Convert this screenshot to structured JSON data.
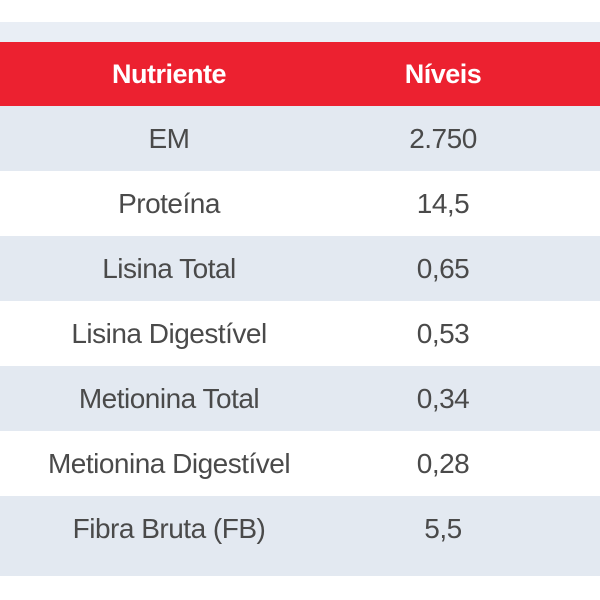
{
  "table": {
    "headers": {
      "nutrient": "Nutriente",
      "levels": "Níveis"
    },
    "rows": [
      {
        "nutrient": "EM",
        "level": "2.750"
      },
      {
        "nutrient": "Proteína",
        "level": "14,5"
      },
      {
        "nutrient": "Lisina Total",
        "level": "0,65"
      },
      {
        "nutrient": "Lisina Digestível",
        "level": "0,53"
      },
      {
        "nutrient": "Metionina Total",
        "level": "0,34"
      },
      {
        "nutrient": "Metionina Digestível",
        "level": "0,28"
      },
      {
        "nutrient": "Fibra Bruta (FB)",
        "level": "5,5"
      }
    ]
  },
  "colors": {
    "header_bg": "#ec2130",
    "shaded_row_bg": "#e3e9f1",
    "text": "#4a4a4a"
  }
}
